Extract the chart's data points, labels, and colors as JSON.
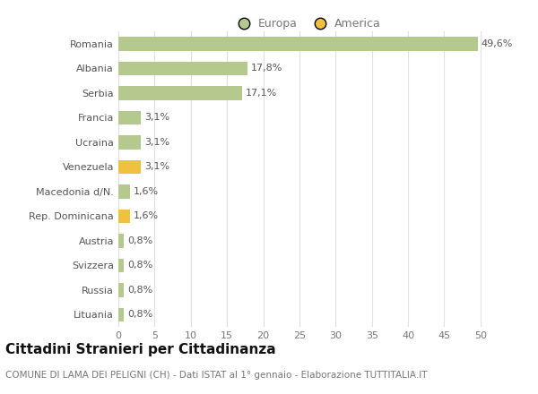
{
  "categories": [
    "Romania",
    "Albania",
    "Serbia",
    "Francia",
    "Ucraina",
    "Venezuela",
    "Macedonia d/N.",
    "Rep. Dominicana",
    "Austria",
    "Svizzera",
    "Russia",
    "Lituania"
  ],
  "values": [
    49.6,
    17.8,
    17.1,
    3.1,
    3.1,
    3.1,
    1.6,
    1.6,
    0.8,
    0.8,
    0.8,
    0.8
  ],
  "labels": [
    "49,6%",
    "17,8%",
    "17,1%",
    "3,1%",
    "3,1%",
    "3,1%",
    "1,6%",
    "1,6%",
    "0,8%",
    "0,8%",
    "0,8%",
    "0,8%"
  ],
  "colors": [
    "#b5c98e",
    "#b5c98e",
    "#b5c98e",
    "#b5c98e",
    "#b5c98e",
    "#f0c040",
    "#b5c98e",
    "#f0c040",
    "#b5c98e",
    "#b5c98e",
    "#b5c98e",
    "#b5c98e"
  ],
  "legend_labels": [
    "Europa",
    "America"
  ],
  "legend_colors": [
    "#b5c98e",
    "#f0c040"
  ],
  "title": "Cittadini Stranieri per Cittadinanza",
  "subtitle": "COMUNE DI LAMA DEI PELIGNI (CH) - Dati ISTAT al 1° gennaio - Elaborazione TUTTITALIA.IT",
  "xlim": [
    0,
    52
  ],
  "xticks": [
    0,
    5,
    10,
    15,
    20,
    25,
    30,
    35,
    40,
    45,
    50
  ],
  "background_color": "#ffffff",
  "grid_color": "#e0e0e0",
  "bar_height": 0.55,
  "title_fontsize": 11,
  "subtitle_fontsize": 7.5,
  "tick_fontsize": 8,
  "label_fontsize": 8,
  "legend_fontsize": 9
}
